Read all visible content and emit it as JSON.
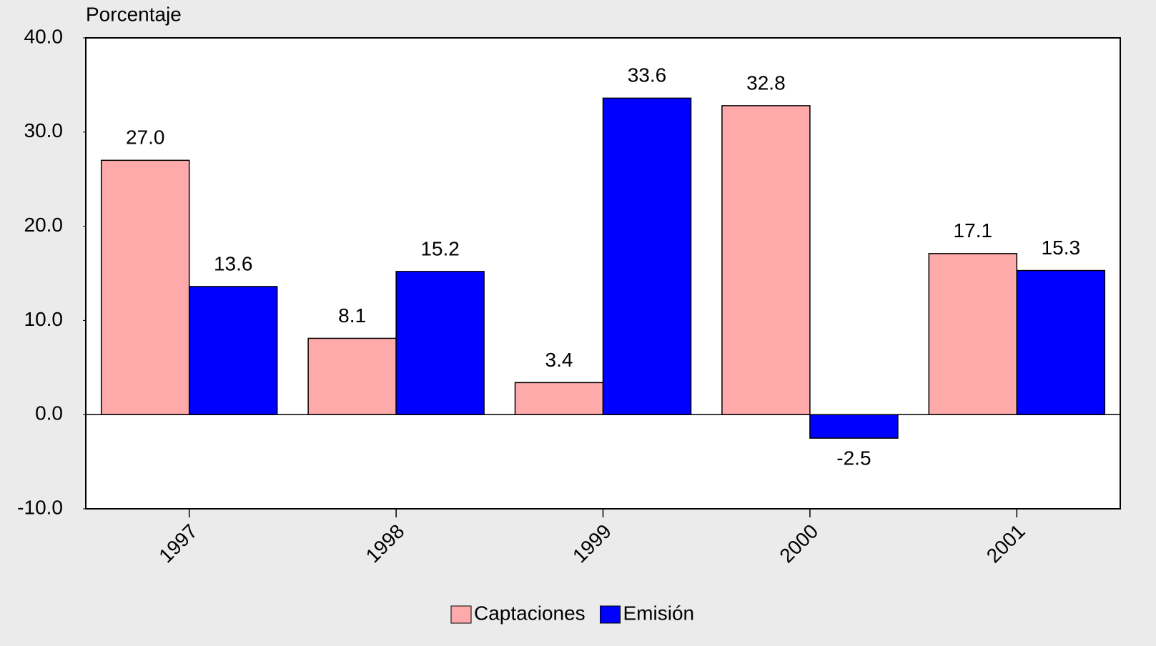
{
  "chart_data": {
    "type": "bar",
    "y_axis_label": "Porcentaje",
    "categories": [
      "1997",
      "1998",
      "1999",
      "2000",
      "2001"
    ],
    "series": [
      {
        "name": "Captaciones",
        "color": "#ffaaaa",
        "values": [
          27.0,
          8.1,
          3.4,
          32.8,
          17.1
        ],
        "value_labels": [
          "27.0",
          "8.1",
          "3.4",
          "32.8",
          "17.1"
        ]
      },
      {
        "name": "Emisión",
        "color": "#0000ff",
        "values": [
          13.6,
          15.2,
          33.6,
          -2.5,
          15.3
        ],
        "value_labels": [
          "13.6",
          "15.2",
          "33.6",
          "-2.5",
          "15.3"
        ]
      }
    ],
    "ylim": [
      -10,
      40
    ],
    "yticks": [
      {
        "value": -10,
        "label": "-10.0"
      },
      {
        "value": 0,
        "label": "0.0"
      },
      {
        "value": 10,
        "label": "10.0"
      },
      {
        "value": 20,
        "label": "20.0"
      },
      {
        "value": 30,
        "label": "30.0"
      },
      {
        "value": 40,
        "label": "40.0"
      }
    ],
    "legend": "bottom"
  }
}
